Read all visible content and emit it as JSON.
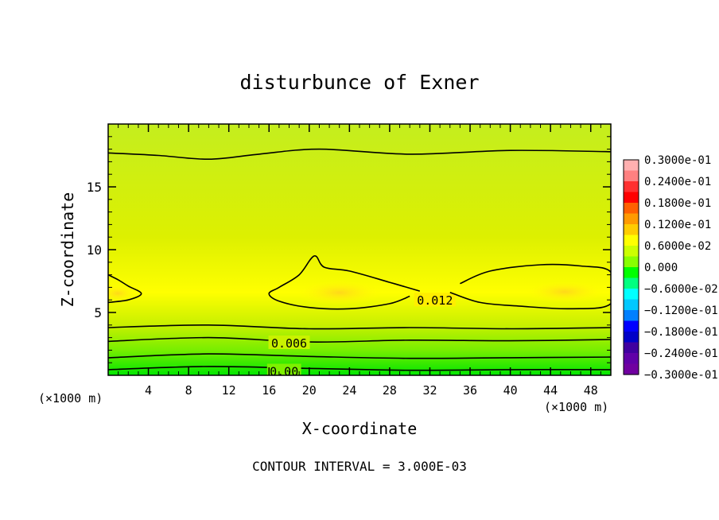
{
  "chart_data": {
    "type": "heatmap",
    "title": "disturbunce of Exner",
    "xlabel": "X-coordinate",
    "ylabel": "Z-coordinate",
    "x_unit_left": "(×1000 m)",
    "x_unit_right": "(×1000 m)",
    "footer": "CONTOUR INTERVAL = 3.000E-03",
    "xlim": [
      0,
      50
    ],
    "ylim": [
      0,
      20
    ],
    "x_ticks": [
      "4",
      "8",
      "12",
      "16",
      "20",
      "24",
      "28",
      "32",
      "36",
      "40",
      "44",
      "48"
    ],
    "x_tick_values": [
      4,
      8,
      12,
      16,
      20,
      24,
      28,
      32,
      36,
      40,
      44,
      48
    ],
    "y_ticks": [
      "5",
      "10",
      "15"
    ],
    "y_tick_values": [
      5,
      10,
      15
    ],
    "contour_interval": 0.003,
    "contour_lines": [
      {
        "level": 0.0,
        "label": "0.00",
        "points": [
          [
            0,
            0.45
          ],
          [
            10,
            0.7
          ],
          [
            20,
            0.55
          ],
          [
            30,
            0.4
          ],
          [
            40,
            0.45
          ],
          [
            50,
            0.45
          ]
        ],
        "label_at": [
          17.5,
          0.35
        ]
      },
      {
        "level": 0.003,
        "label": "",
        "points": [
          [
            0,
            1.4
          ],
          [
            10,
            1.7
          ],
          [
            20,
            1.5
          ],
          [
            30,
            1.35
          ],
          [
            40,
            1.4
          ],
          [
            50,
            1.45
          ]
        ]
      },
      {
        "level": 0.006,
        "label": "0.006",
        "points": [
          [
            0,
            2.7
          ],
          [
            10,
            3.0
          ],
          [
            20,
            2.65
          ],
          [
            30,
            2.8
          ],
          [
            40,
            2.75
          ],
          [
            50,
            2.85
          ]
        ],
        "label_at": [
          18,
          2.6
        ]
      },
      {
        "level": 0.009,
        "label": "",
        "points": [
          [
            0,
            3.8
          ],
          [
            10,
            4.0
          ],
          [
            20,
            3.7
          ],
          [
            30,
            3.8
          ],
          [
            40,
            3.7
          ],
          [
            50,
            3.8
          ]
        ]
      },
      {
        "level": 0.009,
        "label": "",
        "points": [
          [
            0,
            17.7
          ],
          [
            5,
            17.5
          ],
          [
            10,
            17.2
          ],
          [
            15,
            17.6
          ],
          [
            21,
            18.0
          ],
          [
            30,
            17.6
          ],
          [
            40,
            17.9
          ],
          [
            50,
            17.8
          ]
        ]
      },
      {
        "level": 0.012,
        "label": "0.012",
        "points": [
          [
            0,
            8.0
          ],
          [
            1,
            7.6
          ],
          [
            2,
            7.1
          ],
          [
            3.3,
            6.5
          ],
          [
            2,
            6.0
          ],
          [
            0,
            5.8
          ]
        ]
      },
      {
        "level": 0.012,
        "label": "0.012",
        "points": [
          [
            30,
            6.3
          ],
          [
            28,
            5.7
          ],
          [
            24,
            5.3
          ],
          [
            20,
            5.4
          ],
          [
            17,
            5.9
          ],
          [
            16,
            6.5
          ],
          [
            17,
            7.0
          ],
          [
            19,
            8.0
          ],
          [
            20.5,
            9.5
          ],
          [
            21.5,
            8.6
          ],
          [
            24,
            8.3
          ],
          [
            28,
            7.4
          ],
          [
            31,
            6.7
          ]
        ],
        "label_at": [
          32.5,
          6.0
        ]
      },
      {
        "level": 0.012,
        "label": "",
        "points": [
          [
            35,
            7.3
          ],
          [
            38,
            8.3
          ],
          [
            43,
            8.8
          ],
          [
            47,
            8.7
          ],
          [
            50,
            8.2
          ],
          [
            50,
            5.7
          ],
          [
            46,
            5.3
          ],
          [
            41,
            5.5
          ],
          [
            37,
            5.8
          ],
          [
            34,
            6.6
          ]
        ],
        "label_at": [
          32.5,
          7.1
        ]
      }
    ],
    "colorbar": {
      "labels": [
        "0.3000e-01",
        "0.2400e-01",
        "0.1800e-01",
        "0.1200e-01",
        "0.6000e-02",
        "0.000",
        "−0.6000e-02",
        "−0.1200e-01",
        "−0.1800e-01",
        "−0.2400e-01",
        "−0.3000e-01"
      ],
      "values": [
        0.03,
        0.024,
        0.018,
        0.012,
        0.006,
        0.0,
        -0.006,
        -0.012,
        -0.018,
        -0.024,
        -0.03
      ],
      "colors": [
        "#ffb0b0",
        "#ff8080",
        "#ff3030",
        "#ff0000",
        "#ff6000",
        "#ff9a00",
        "#ffcc00",
        "#ffff00",
        "#ccff00",
        "#88ff00",
        "#00ff00",
        "#00ff80",
        "#00ffff",
        "#00c8ff",
        "#0080ff",
        "#0000ff",
        "#0000c8",
        "#4000a0",
        "#6000a8",
        "#7000a0"
      ]
    },
    "field_colors": {
      "bottom": "#00e600",
      "low": "#77ee00",
      "mid_low": "#c8f000",
      "band": "#ffff00",
      "core": "#ffd81a",
      "upper": "#ddf000",
      "top": "#c4ee1e"
    }
  }
}
